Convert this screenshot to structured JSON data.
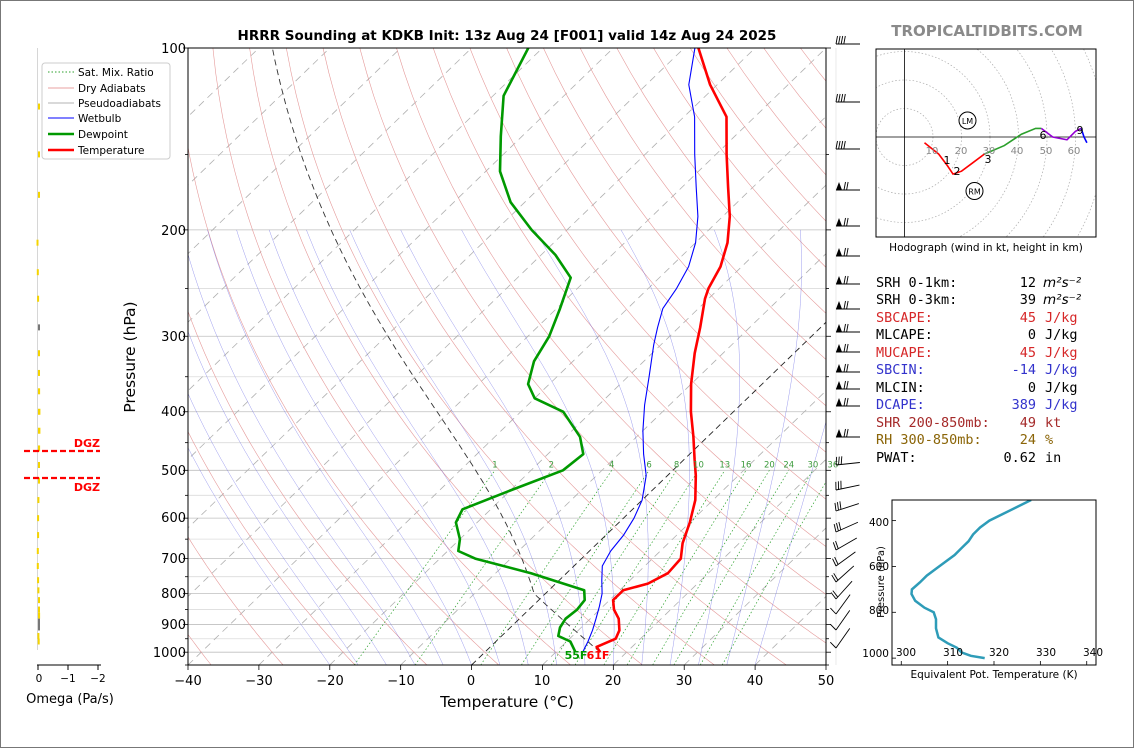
{
  "chart_data": [
    {
      "type": "line",
      "title": "HRRR Sounding at KDKB Init: 13z Aug 24 [F001] valid 14z Aug 24 2025",
      "watermark": "TROPICALTIDBITS.COM",
      "xlabel": "Temperature (°C)",
      "ylabel": "Pressure (hPa)",
      "xlim": [
        -40,
        50
      ],
      "ylim": [
        1050,
        100
      ],
      "yscale": "log",
      "x_ticks": [
        -40,
        -30,
        -20,
        -10,
        0,
        10,
        20,
        30,
        40,
        50
      ],
      "y_ticks": [
        100,
        200,
        300,
        400,
        500,
        600,
        700,
        800,
        900,
        1000
      ],
      "x_tick_labels": [
        "−40",
        "−30",
        "−20",
        "−10",
        "0",
        "10",
        "20",
        "30",
        "40",
        "50"
      ],
      "y_tick_labels": [
        "100",
        "200",
        "300",
        "400",
        "500",
        "600",
        "700",
        "800",
        "900",
        "1000"
      ],
      "skew": true,
      "legend": {
        "placement": "top-left",
        "entries": [
          {
            "label": "Sat. Mix. Ratio",
            "color": "#2ca02c",
            "style": "dotted"
          },
          {
            "label": "Dry Adiabats",
            "color": "#e08080",
            "style": "solid"
          },
          {
            "label": "Pseudoadiabats",
            "color": "#9a9a9a",
            "style": "solid"
          },
          {
            "label": "Wetbulb",
            "color": "#0000ff",
            "style": "solid"
          },
          {
            "label": "Dewpoint",
            "color": "#009900",
            "style": "solid"
          },
          {
            "label": "Temperature",
            "color": "#ff0000",
            "style": "solid"
          }
        ]
      },
      "mixing_ratio_labels": [
        "1",
        "2",
        "4",
        "6",
        "8",
        "10",
        "13",
        "16",
        "20",
        "24",
        "30",
        "36"
      ],
      "surface_labels": {
        "dewpoint": "55F",
        "temperature": "61F",
        "dewpoint_color": "#009900",
        "temperature_color": "#ff0000"
      },
      "series": [
        {
          "name": "Temperature",
          "color": "#ff0000",
          "points": [
            [
              16.3,
              1000
            ],
            [
              15.0,
              980
            ],
            [
              16.5,
              950
            ],
            [
              15.8,
              920
            ],
            [
              14.0,
              880
            ],
            [
              12.0,
              850
            ],
            [
              10.5,
              820
            ],
            [
              10.5,
              790
            ],
            [
              13.0,
              770
            ],
            [
              14.3,
              740
            ],
            [
              14.0,
              700
            ],
            [
              12.0,
              660
            ],
            [
              10.0,
              610
            ],
            [
              7.5,
              560
            ],
            [
              4.0,
              510
            ],
            [
              1.5,
              480
            ],
            [
              -2.0,
              440
            ],
            [
              -6.0,
              400
            ],
            [
              -10.0,
              360
            ],
            [
              -14.0,
              320
            ],
            [
              -17.0,
              290
            ],
            [
              -20.5,
              260
            ],
            [
              -21.5,
              250
            ],
            [
              -23.0,
              230
            ],
            [
              -25.5,
              210
            ],
            [
              -29.0,
              190
            ],
            [
              -33.5,
              170
            ],
            [
              -38.5,
              150
            ],
            [
              -44.0,
              130
            ],
            [
              -51.0,
              115
            ],
            [
              -58.0,
              100
            ]
          ]
        },
        {
          "name": "Wetbulb",
          "color": "#0000ff",
          "points": [
            [
              13.8,
              1000
            ],
            [
              13.0,
              960
            ],
            [
              12.0,
              920
            ],
            [
              10.8,
              880
            ],
            [
              9.5,
              840
            ],
            [
              8.0,
              800
            ],
            [
              6.0,
              760
            ],
            [
              4.0,
              720
            ],
            [
              3.0,
              680
            ],
            [
              2.5,
              640
            ],
            [
              1.5,
              600
            ],
            [
              0.0,
              560
            ],
            [
              -3.0,
              510
            ],
            [
              -6.5,
              470
            ],
            [
              -10.0,
              430
            ],
            [
              -13.5,
              390
            ],
            [
              -17.0,
              350
            ],
            [
              -21.0,
              310
            ],
            [
              -23.0,
              290
            ],
            [
              -25.0,
              270
            ],
            [
              -26.0,
              250
            ],
            [
              -27.5,
              230
            ],
            [
              -30.0,
              210
            ],
            [
              -33.5,
              190
            ],
            [
              -38.0,
              170
            ],
            [
              -43.0,
              150
            ],
            [
              -48.5,
              130
            ],
            [
              -54.0,
              115
            ],
            [
              -58.5,
              100
            ]
          ]
        },
        {
          "name": "Dewpoint",
          "color": "#009900",
          "points": [
            [
              12.8,
              1000
            ],
            [
              10.5,
              960
            ],
            [
              8.0,
              940
            ],
            [
              7.0,
              910
            ],
            [
              6.5,
              880
            ],
            [
              6.8,
              850
            ],
            [
              6.5,
              820
            ],
            [
              5.0,
              790
            ],
            [
              -5.0,
              740
            ],
            [
              -15.0,
              700
            ],
            [
              -18.5,
              680
            ],
            [
              -20.0,
              650
            ],
            [
              -23.0,
              610
            ],
            [
              -24.0,
              580
            ],
            [
              -20.0,
              540
            ],
            [
              -15.5,
              500
            ],
            [
              -15.0,
              470
            ],
            [
              -18.0,
              440
            ],
            [
              -24.0,
              400
            ],
            [
              -30.0,
              380
            ],
            [
              -33.0,
              360
            ],
            [
              -35.5,
              330
            ],
            [
              -37.0,
              300
            ],
            [
              -39.5,
              270
            ],
            [
              -42.5,
              240
            ],
            [
              -48.0,
              220
            ],
            [
              -55.0,
              200
            ],
            [
              -62.0,
              180
            ],
            [
              -68.0,
              160
            ],
            [
              -73.0,
              140
            ],
            [
              -78.5,
              120
            ],
            [
              -82.0,
              100
            ]
          ]
        }
      ]
    },
    {
      "type": "line",
      "title": "",
      "xlabel": "Omega (Pa/s)",
      "ylabel": "",
      "xlim": [
        0.2,
        -2.3
      ],
      "x_ticks": [
        0,
        -1,
        -2
      ],
      "x_tick_labels": [
        "0",
        "−1",
        "−2"
      ],
      "dgz_label": "DGZ",
      "dgz_layer_hpa": [
        470,
        515
      ],
      "profile_hpa": [
        125,
        150,
        175,
        210,
        235,
        260,
        290,
        320,
        345,
        370,
        400,
        430,
        460,
        490,
        520,
        560,
        600,
        640,
        680,
        720,
        760,
        790,
        820,
        850,
        870,
        890,
        910,
        940,
        960
      ],
      "profile_values": [
        -0.02,
        -0.05,
        -0.03,
        0.05,
        0.04,
        0.03,
        -0.02,
        -0.04,
        -0.06,
        -0.07,
        -0.08,
        -0.08,
        -0.07,
        -0.05,
        -0.03,
        0.02,
        0.03,
        0.03,
        0.04,
        0.04,
        0.03,
        0.02,
        -0.02,
        -0.05,
        -0.07,
        -0.06,
        -0.04,
        0.02,
        0.01
      ]
    },
    {
      "type": "line",
      "title": "Hodograph (wind in kt, height in km)",
      "x_range_kt": [
        -20,
        67
      ],
      "y_range_kt": [
        -35,
        30
      ],
      "ring_labels": [
        "10",
        "20",
        "30",
        "40",
        "50",
        "60"
      ],
      "storm_motion_labels": [
        "LM",
        "RM"
      ],
      "storm_motion": {
        "LM": [
          22,
          6
        ],
        "RM": [
          25,
          -19
        ]
      },
      "height_labels": [
        "1",
        "2",
        "3",
        "6",
        "9"
      ],
      "segments": [
        {
          "color": "#ff0000",
          "points": [
            [
              7,
              -2
            ],
            [
              12,
              -6
            ],
            [
              15,
              -10
            ],
            [
              17,
              -13
            ],
            [
              20,
              -12
            ],
            [
              24,
              -9
            ],
            [
              28,
              -6
            ]
          ]
        },
        {
          "color": "#2ca02c",
          "points": [
            [
              28,
              -6
            ],
            [
              35,
              -3
            ],
            [
              41,
              1
            ],
            [
              46,
              3
            ],
            [
              48,
              3
            ]
          ]
        },
        {
          "color": "#9400d3",
          "points": [
            [
              48,
              3
            ],
            [
              52,
              0
            ],
            [
              57,
              -1
            ],
            [
              60,
              2
            ],
            [
              62,
              3
            ]
          ]
        },
        {
          "color": "#0000ff",
          "points": [
            [
              62,
              3
            ],
            [
              63,
              0
            ],
            [
              64,
              -2
            ]
          ]
        }
      ]
    },
    {
      "type": "table",
      "rows": [
        {
          "label": "SRH 0-1km:",
          "value": "12",
          "unit": "m²s⁻²",
          "color": "#000000"
        },
        {
          "label": "SRH 0-3km:",
          "value": "39",
          "unit": "m²s⁻²",
          "color": "#000000"
        },
        {
          "label": "SBCAPE:",
          "value": "45",
          "unit": "J/kg",
          "color": "#d62728"
        },
        {
          "label": "MLCAPE:",
          "value": "0",
          "unit": "J/kg",
          "color": "#000000"
        },
        {
          "label": "MUCAPE:",
          "value": "45",
          "unit": "J/kg",
          "color": "#d62728"
        },
        {
          "label": "SBCIN:",
          "value": "-14",
          "unit": "J/kg",
          "color": "#3333cc"
        },
        {
          "label": "MLCIN:",
          "value": "0",
          "unit": "J/kg",
          "color": "#000000"
        },
        {
          "label": "DCAPE:",
          "value": "389",
          "unit": "J/kg",
          "color": "#3333cc"
        },
        {
          "label": "SHR 200-850mb:",
          "value": "49",
          "unit": "kt",
          "color": "#a52a2a"
        },
        {
          "label": "RH 300-850mb:",
          "value": "24",
          "unit": "%",
          "color": "#8b6508"
        },
        {
          "label": "PWAT:",
          "value": "0.62",
          "unit": "in",
          "color": "#000000"
        }
      ]
    },
    {
      "type": "line",
      "title": "",
      "xlabel": "Equivalent Pot. Temperature (K)",
      "ylabel": "Pressure (hPa)",
      "xlim": [
        298,
        342
      ],
      "ylim": [
        1030,
        310
      ],
      "x_ticks": [
        300,
        310,
        320,
        330,
        340
      ],
      "y_ticks": [
        400,
        600,
        800,
        1000
      ],
      "x_tick_labels": [
        "300",
        "310",
        "320",
        "330",
        "340"
      ],
      "y_tick_labels": [
        "400",
        "600",
        "800",
        "1000"
      ],
      "series": [
        {
          "color": "#2e9cb8",
          "points": [
            [
              328,
              310
            ],
            [
              325,
              340
            ],
            [
              322,
              370
            ],
            [
              319,
              400
            ],
            [
              317,
              430
            ],
            [
              315.5,
              460
            ],
            [
              314.5,
              490
            ],
            [
              313,
              520
            ],
            [
              311.5,
              550
            ],
            [
              309.5,
              580
            ],
            [
              307.5,
              610
            ],
            [
              305.5,
              640
            ],
            [
              304,
              670
            ],
            [
              302.3,
              700
            ],
            [
              302.2,
              720
            ],
            [
              303,
              750
            ],
            [
              305,
              780
            ],
            [
              307,
              800
            ],
            [
              307.5,
              830
            ],
            [
              307.5,
              870
            ],
            [
              308,
              910
            ],
            [
              310,
              935
            ],
            [
              312,
              955
            ],
            [
              313,
              975
            ],
            [
              315,
              990
            ],
            [
              318,
              1000
            ]
          ]
        }
      ]
    }
  ]
}
